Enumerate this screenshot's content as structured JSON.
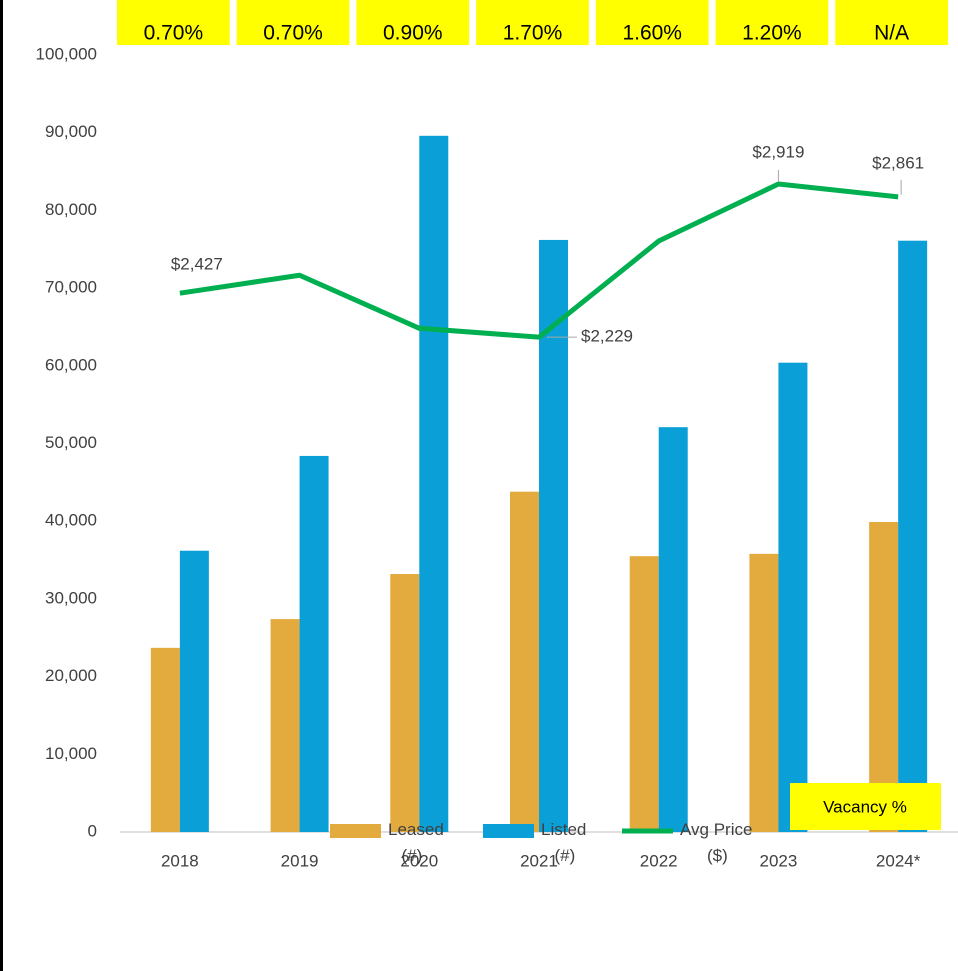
{
  "chart_data": {
    "type": "bar",
    "categories": [
      "2018",
      "2019",
      "2020",
      "2021",
      "2022",
      "2023",
      "2024*"
    ],
    "series": [
      {
        "name": "Leased (#)",
        "color": "#E3AA3D",
        "values": [
          23700,
          27400,
          33200,
          43800,
          35500,
          35800,
          39900
        ]
      },
      {
        "name": "Listed (#)",
        "color": "#0A9FD6",
        "values": [
          36200,
          48400,
          89600,
          76200,
          52100,
          60400,
          76100
        ]
      },
      {
        "name": "Avg Price ($)",
        "type": "line",
        "axis": "y2",
        "color": "#00B050",
        "values": [
          2427,
          2508,
          2269,
          2229,
          2662,
          2919,
          2861
        ],
        "value_labels": [
          "$2,427",
          null,
          null,
          "$2,229",
          null,
          "$2,919",
          "$2,861"
        ]
      }
    ],
    "vacancy": {
      "name": "Vacancy %",
      "color": "#FFFF00",
      "values": [
        0.7,
        0.7,
        0.9,
        1.7,
        1.6,
        1.2,
        null
      ],
      "value_labels": [
        "0.70%",
        "0.70%",
        "0.90%",
        "1.70%",
        "1.60%",
        "1.20%",
        "N/A"
      ]
    },
    "ylim": [
      0,
      100000
    ],
    "yticks": [
      {
        "value": 0,
        "label": "0"
      },
      {
        "value": 10000,
        "label": "10,000"
      },
      {
        "value": 20000,
        "label": "20,000"
      },
      {
        "value": 30000,
        "label": "30,000"
      },
      {
        "value": 40000,
        "label": "40,000"
      },
      {
        "value": 50000,
        "label": "50,000"
      },
      {
        "value": 60000,
        "label": "60,000"
      },
      {
        "value": 70000,
        "label": "70,000"
      },
      {
        "value": 80000,
        "label": "80,000"
      },
      {
        "value": 90000,
        "label": "90,000"
      },
      {
        "value": 100000,
        "label": "100,000"
      }
    ],
    "y2lim": [
      0,
      3500
    ],
    "grid": false
  }
}
